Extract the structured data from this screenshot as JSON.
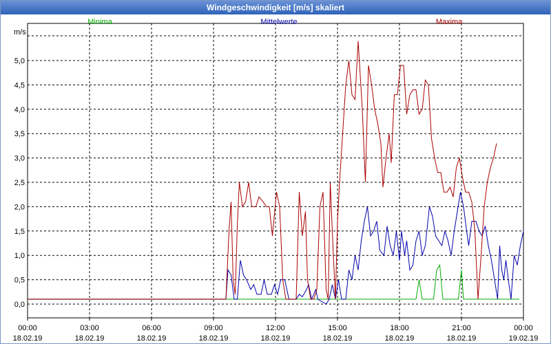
{
  "window": {
    "title": "Windgeschwindigkeit [m/s] skaliert"
  },
  "chart_data": {
    "type": "line",
    "title": "Windgeschwindigkeit [m/s] skaliert",
    "ylabel": "m/s",
    "xlabel": "",
    "ylim": [
      -0.3,
      5.6
    ],
    "xlim": [
      0,
      24
    ],
    "grid": true,
    "legend_placement": "top",
    "y_ticks": [
      {
        "value": 0.0,
        "label": "0,0"
      },
      {
        "value": 0.5,
        "label": "0,5"
      },
      {
        "value": 1.0,
        "label": "1,0"
      },
      {
        "value": 1.5,
        "label": "1,5"
      },
      {
        "value": 2.0,
        "label": "2,0"
      },
      {
        "value": 2.5,
        "label": "2,5"
      },
      {
        "value": 3.0,
        "label": "3,0"
      },
      {
        "value": 3.5,
        "label": "3,5"
      },
      {
        "value": 4.0,
        "label": "4,0"
      },
      {
        "value": 4.5,
        "label": "4,5"
      },
      {
        "value": 5.0,
        "label": "5,0"
      }
    ],
    "x_ticks": [
      {
        "value": 0,
        "time": "00:00",
        "date": "18.02.19"
      },
      {
        "value": 3,
        "time": "03:00",
        "date": "18.02.19"
      },
      {
        "value": 6,
        "time": "06:00",
        "date": "18.02.19"
      },
      {
        "value": 9,
        "time": "09:00",
        "date": "18.02.19"
      },
      {
        "value": 12,
        "time": "12:00",
        "date": "18.02.19"
      },
      {
        "value": 15,
        "time": "15:00",
        "date": "18.02.19"
      },
      {
        "value": 18,
        "time": "18:00",
        "date": "18.02.19"
      },
      {
        "value": 21,
        "time": "21:00",
        "date": "18.02.19"
      },
      {
        "value": 24,
        "time": "00:00",
        "date": "19.02.19"
      }
    ],
    "series": [
      {
        "name": "Minima",
        "color": "#00aa00",
        "points": [
          [
            0,
            0.1
          ],
          [
            9.6,
            0.1
          ],
          [
            18.8,
            0.1
          ],
          [
            18.95,
            0.5
          ],
          [
            19.1,
            0.1
          ],
          [
            19.65,
            0.1
          ],
          [
            19.8,
            0.7
          ],
          [
            19.95,
            0.8
          ],
          [
            20.1,
            0.1
          ],
          [
            20.85,
            0.1
          ],
          [
            21.0,
            0.7
          ],
          [
            21.1,
            0.1
          ],
          [
            23.8,
            0.1
          ]
        ]
      },
      {
        "name": "Mittelwerte",
        "color": "#0000aa",
        "points": [
          [
            0,
            0.1
          ],
          [
            9.6,
            0.1
          ],
          [
            9.7,
            0.7
          ],
          [
            9.85,
            0.6
          ],
          [
            10.0,
            0.1
          ],
          [
            10.15,
            0.1
          ],
          [
            10.3,
            0.9
          ],
          [
            10.45,
            0.6
          ],
          [
            10.6,
            0.5
          ],
          [
            10.8,
            0.3
          ],
          [
            10.95,
            0.4
          ],
          [
            11.1,
            0.2
          ],
          [
            11.3,
            0.2
          ],
          [
            11.45,
            0.5
          ],
          [
            11.6,
            0.2
          ],
          [
            11.8,
            0.2
          ],
          [
            11.95,
            0.4
          ],
          [
            12.1,
            0.2
          ],
          [
            12.25,
            0.5
          ],
          [
            12.45,
            0.5
          ],
          [
            12.65,
            0.1
          ],
          [
            13.0,
            0.1
          ],
          [
            13.15,
            0.2
          ],
          [
            13.3,
            0.15
          ],
          [
            13.5,
            0.3
          ],
          [
            13.6,
            0.4
          ],
          [
            13.75,
            0.1
          ],
          [
            13.95,
            0.3
          ],
          [
            14.05,
            0.1
          ],
          [
            14.25,
            0.05
          ],
          [
            14.45,
            0.0
          ],
          [
            14.6,
            0.1
          ],
          [
            14.75,
            0.4
          ],
          [
            14.9,
            0.1
          ],
          [
            15.05,
            0.5
          ],
          [
            15.2,
            0.1
          ],
          [
            15.4,
            0.1
          ],
          [
            15.55,
            0.7
          ],
          [
            15.7,
            0.5
          ],
          [
            15.85,
            1.0
          ],
          [
            16.0,
            0.7
          ],
          [
            16.15,
            1.3
          ],
          [
            16.3,
            1.7
          ],
          [
            16.45,
            2.0
          ],
          [
            16.6,
            1.4
          ],
          [
            16.75,
            1.5
          ],
          [
            16.9,
            1.7
          ],
          [
            17.05,
            1.1
          ],
          [
            17.25,
            1.0
          ],
          [
            17.4,
            1.6
          ],
          [
            17.55,
            1.2
          ],
          [
            17.7,
            1.0
          ],
          [
            17.85,
            1.5
          ],
          [
            18.0,
            0.9
          ],
          [
            18.1,
            1.5
          ],
          [
            18.25,
            1.0
          ],
          [
            18.35,
            1.3
          ],
          [
            18.5,
            0.7
          ],
          [
            18.65,
            0.8
          ],
          [
            18.8,
            1.3
          ],
          [
            18.95,
            1.5
          ],
          [
            19.1,
            1.0
          ],
          [
            19.25,
            1.2
          ],
          [
            19.45,
            2.0
          ],
          [
            19.6,
            1.8
          ],
          [
            19.75,
            1.4
          ],
          [
            19.9,
            1.3
          ],
          [
            20.05,
            1.2
          ],
          [
            20.2,
            1.5
          ],
          [
            20.35,
            1.3
          ],
          [
            20.5,
            1.0
          ],
          [
            20.65,
            1.5
          ],
          [
            20.8,
            1.9
          ],
          [
            20.95,
            2.3
          ],
          [
            21.1,
            2.0
          ],
          [
            21.25,
            1.5
          ],
          [
            21.35,
            1.2
          ],
          [
            21.5,
            1.7
          ],
          [
            21.7,
            1.7
          ],
          [
            21.85,
            1.5
          ],
          [
            22.0,
            1.4
          ],
          [
            22.15,
            1.6
          ],
          [
            22.3,
            1.2
          ],
          [
            22.45,
            0.9
          ],
          [
            22.6,
            0.5
          ],
          [
            22.75,
            0.1
          ],
          [
            22.85,
            1.2
          ],
          [
            22.95,
            0.7
          ],
          [
            23.05,
            0.5
          ],
          [
            23.15,
            0.9
          ],
          [
            23.3,
            0.4
          ],
          [
            23.4,
            0.1
          ],
          [
            23.55,
            1.0
          ],
          [
            23.7,
            0.8
          ],
          [
            23.85,
            1.2
          ],
          [
            24.0,
            1.5
          ]
        ]
      },
      {
        "name": "Maxima",
        "color": "#aa0000",
        "points": [
          [
            0,
            0.1
          ],
          [
            9.6,
            0.1
          ],
          [
            9.75,
            1.5
          ],
          [
            9.85,
            2.1
          ],
          [
            9.95,
            0.5
          ],
          [
            10.05,
            0.2
          ],
          [
            10.15,
            1.6
          ],
          [
            10.25,
            2.5
          ],
          [
            10.4,
            2.0
          ],
          [
            10.55,
            2.1
          ],
          [
            10.7,
            2.5
          ],
          [
            10.85,
            2.0
          ],
          [
            11.05,
            2.0
          ],
          [
            11.2,
            2.2
          ],
          [
            11.4,
            2.1
          ],
          [
            11.55,
            2.0
          ],
          [
            11.7,
            2.0
          ],
          [
            11.85,
            1.4
          ],
          [
            12.05,
            2.3
          ],
          [
            12.2,
            2.0
          ],
          [
            12.35,
            0.5
          ],
          [
            12.5,
            0.1
          ],
          [
            13.0,
            0.1
          ],
          [
            13.15,
            2.3
          ],
          [
            13.3,
            1.4
          ],
          [
            13.45,
            1.9
          ],
          [
            13.55,
            0.5
          ],
          [
            13.7,
            0.1
          ],
          [
            13.85,
            0.1
          ],
          [
            14.0,
            0.3
          ],
          [
            14.15,
            2.0
          ],
          [
            14.3,
            2.3
          ],
          [
            14.45,
            0.3
          ],
          [
            14.55,
            0.1
          ],
          [
            14.65,
            2.5
          ],
          [
            14.8,
            1.0
          ],
          [
            14.9,
            0.1
          ],
          [
            15.0,
            1.7
          ],
          [
            15.1,
            2.5
          ],
          [
            15.25,
            3.5
          ],
          [
            15.4,
            4.5
          ],
          [
            15.55,
            5.0
          ],
          [
            15.7,
            4.3
          ],
          [
            15.85,
            4.2
          ],
          [
            16.0,
            5.4
          ],
          [
            16.2,
            4.0
          ],
          [
            16.35,
            2.5
          ],
          [
            16.5,
            4.9
          ],
          [
            16.65,
            4.5
          ],
          [
            16.8,
            4.0
          ],
          [
            16.95,
            3.7
          ],
          [
            17.1,
            3.3
          ],
          [
            17.2,
            2.4
          ],
          [
            17.35,
            3.0
          ],
          [
            17.5,
            3.5
          ],
          [
            17.6,
            2.9
          ],
          [
            17.75,
            4.3
          ],
          [
            17.9,
            4.3
          ],
          [
            18.05,
            4.9
          ],
          [
            18.2,
            4.9
          ],
          [
            18.35,
            3.9
          ],
          [
            18.5,
            4.3
          ],
          [
            18.65,
            4.4
          ],
          [
            18.8,
            4.4
          ],
          [
            18.95,
            3.9
          ],
          [
            19.1,
            4.0
          ],
          [
            19.25,
            4.6
          ],
          [
            19.4,
            4.5
          ],
          [
            19.55,
            3.4
          ],
          [
            19.7,
            3.0
          ],
          [
            19.85,
            2.7
          ],
          [
            20.0,
            2.7
          ],
          [
            20.15,
            2.3
          ],
          [
            20.3,
            2.3
          ],
          [
            20.45,
            2.4
          ],
          [
            20.6,
            2.2
          ],
          [
            20.75,
            2.8
          ],
          [
            20.9,
            3.0
          ],
          [
            21.05,
            2.6
          ],
          [
            21.2,
            2.3
          ],
          [
            21.35,
            2.3
          ],
          [
            21.5,
            2.1
          ],
          [
            21.65,
            1.5
          ],
          [
            21.8,
            0.1
          ],
          [
            21.95,
            1.0
          ],
          [
            22.1,
            2.0
          ],
          [
            22.25,
            2.5
          ],
          [
            22.4,
            2.8
          ],
          [
            22.55,
            3.0
          ],
          [
            22.7,
            3.3
          ]
        ]
      }
    ]
  }
}
